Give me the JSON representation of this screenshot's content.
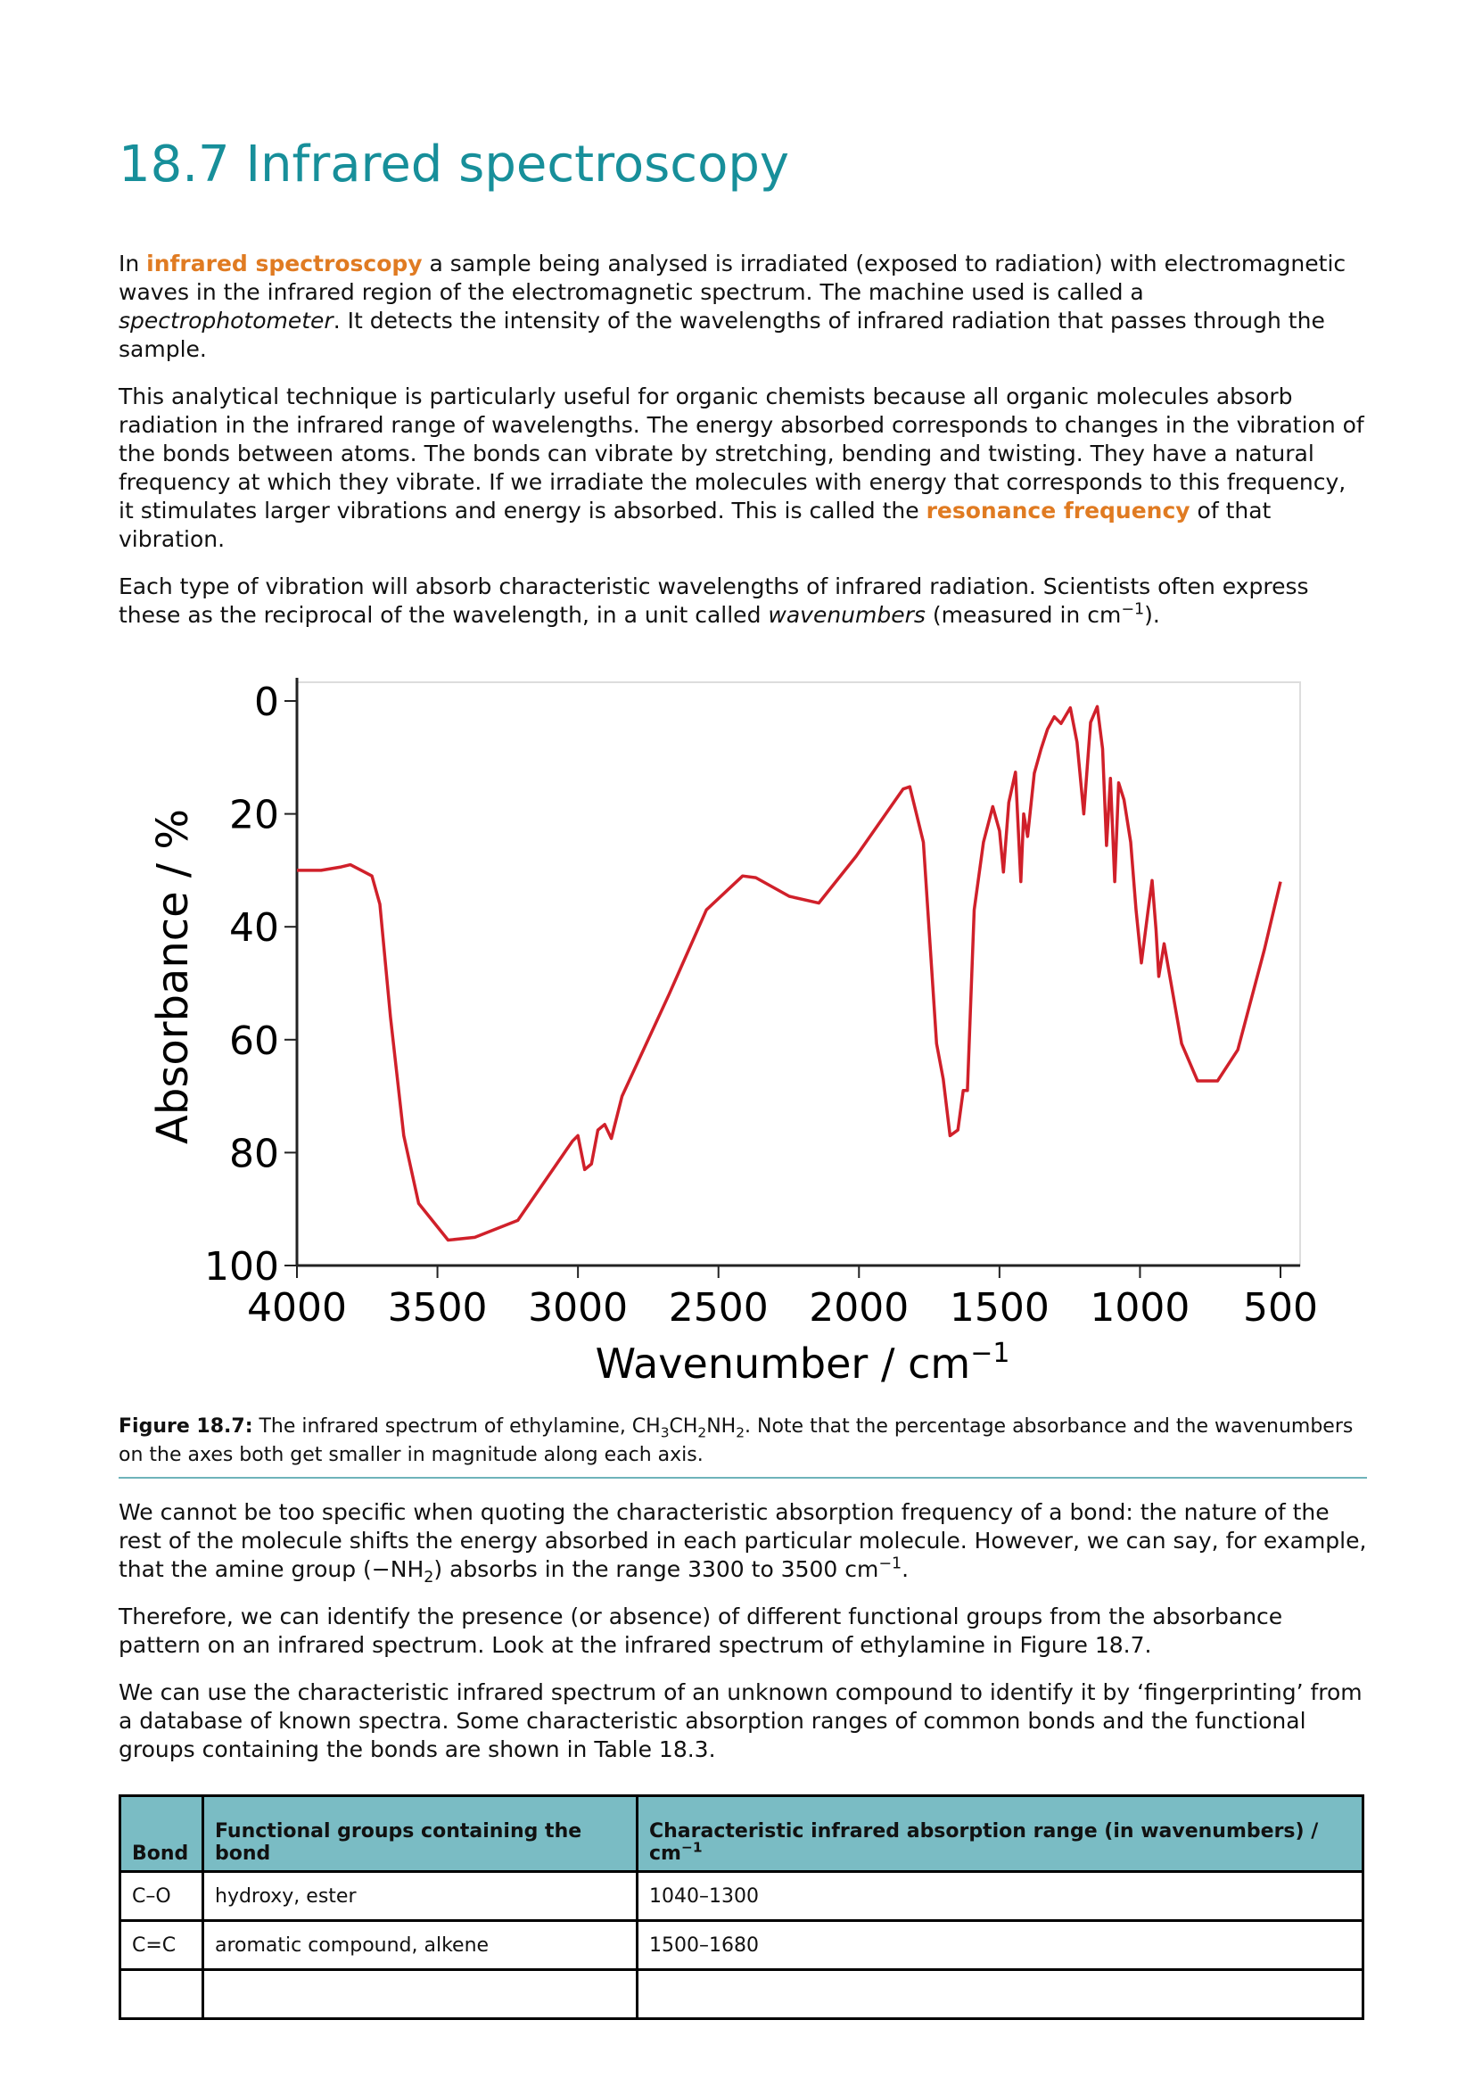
{
  "header": {
    "title": "18.7 Infrared spectroscopy"
  },
  "intro": [
    [
      "In ",
      "infrared spectroscopy",
      " a sample being analysed is irradiated (exposed to radiation) with electromagnetic waves in the infrared region of the electromagnetic spectrum. The machine used is called a ",
      "spectrophotometer",
      ". It detects the intensity of the wavelengths of infrared radiation that passes through the sample."
    ],
    [
      "This analytical technique is particularly useful for organic chemists because all organic molecules absorb radiation in the infrared range of wavelengths. The energy absorbed corresponds to changes in the vibration of the bonds between atoms. The bonds can vibrate by stretching, bending and twisting. They have a natural frequency at which they vibrate. If we irradiate the molecules with energy that corresponds to this frequency, it stimulates larger vibrations and energy is absorbed. This is called the ",
      "resonance frequency",
      " of that vibration."
    ],
    [
      "Each type of vibration will absorb characteristic wavelengths of infrared radiation. Scientists often express these as the reciprocal of the wavelength, in a unit called ",
      "wavenumbers",
      " (measured in cm",
      "−1",
      ")."
    ]
  ],
  "chart_data": {
    "type": "line",
    "x_label": {
      "text": "Wavenumber / cm",
      "sup": "−1"
    },
    "y_label": "Absorbance / %",
    "x": [
      4000,
      3914,
      3843,
      3810,
      3771,
      3733,
      3705,
      3667,
      3620,
      3567,
      3462,
      3367,
      3214,
      3020,
      3000,
      2976,
      2952,
      2929,
      2905,
      2881,
      2843,
      2676,
      2543,
      2414,
      2367,
      2248,
      2143,
      2010,
      1843,
      1819,
      1771,
      1724,
      1700,
      1676,
      1648,
      1629,
      1614,
      1590,
      1557,
      1524,
      1500,
      1486,
      1467,
      1443,
      1424,
      1414,
      1400,
      1376,
      1352,
      1329,
      1305,
      1281,
      1248,
      1224,
      1200,
      1176,
      1152,
      1133,
      1119,
      1105,
      1090,
      1076,
      1057,
      1033,
      1014,
      995,
      971,
      957,
      943,
      933,
      914,
      852,
      795,
      724,
      652,
      557,
      500
    ],
    "series": [
      {
        "color": "#d0202a",
        "values": [
          30,
          30,
          29.4,
          29,
          30,
          31,
          36,
          56,
          77,
          89,
          95.5,
          95,
          92,
          78,
          77,
          83,
          82,
          76,
          75,
          77.5,
          70,
          52,
          37,
          31,
          31.3,
          34.6,
          35.8,
          27.5,
          15.6,
          15.2,
          25,
          60.7,
          67,
          77,
          76,
          69,
          69,
          37,
          25,
          18.7,
          23,
          30.3,
          18,
          12.6,
          32,
          20,
          24,
          12.8,
          8.5,
          5,
          2.8,
          4,
          1.2,
          7.3,
          20,
          3.8,
          1,
          8.5,
          25.6,
          13.7,
          32,
          14.5,
          17.5,
          25,
          37,
          46.4,
          37,
          31.8,
          40.5,
          48.8,
          43,
          60.7,
          67.3,
          67.3,
          61.8,
          44,
          32
        ]
      }
    ],
    "xlim": [
      4000,
      500
    ],
    "xticks": [
      4000,
      3500,
      3000,
      2500,
      2000,
      1500,
      1000,
      500
    ],
    "ylim": [
      0,
      100
    ],
    "yticks": [
      0,
      20,
      40,
      60,
      80,
      100
    ],
    "y_inverted": true
  },
  "caption": [
    "Figure 18.7:",
    " The infrared spectrum of ethylamine, CH",
    "3",
    "CH",
    "2",
    "NH",
    "2",
    ". Note that the percentage absorbance and the wavenumbers on the axes both get smaller in magnitude along each axis."
  ],
  "body": [
    [
      "We cannot be too specific when quoting the characteristic absorption frequency of a bond: the nature of the rest of the molecule shifts the energy absorbed in each particular molecule. However, we can say, for example, that the amine group (−NH",
      "2",
      ") absorbs in the range 3300 to 3500 cm",
      "−1",
      "."
    ],
    [
      "Therefore, we can identify the presence (or absence) of different functional groups from the absorbance pattern on an infrared spectrum. Look at the infrared spectrum of ethylamine in Figure 18.7."
    ],
    [
      "We can use the characteristic infrared spectrum of an unknown compound to identify it by ‘fingerprinting’ from a database of known spectra. Some characteristic absorption ranges of common bonds and the functional groups containing the bonds are shown in Table 18.3."
    ]
  ],
  "table": {
    "header": [
      "Bond",
      "Functional groups containing the bond",
      [
        "Characteristic infrared absorption range (in wavenumbers) / cm",
        "−1"
      ]
    ],
    "rows": [
      [
        "C–O",
        "hydroxy, ester",
        "1040–1300"
      ],
      [
        "C=C",
        "aromatic compound, alkene",
        "1500–1680"
      ]
    ]
  }
}
